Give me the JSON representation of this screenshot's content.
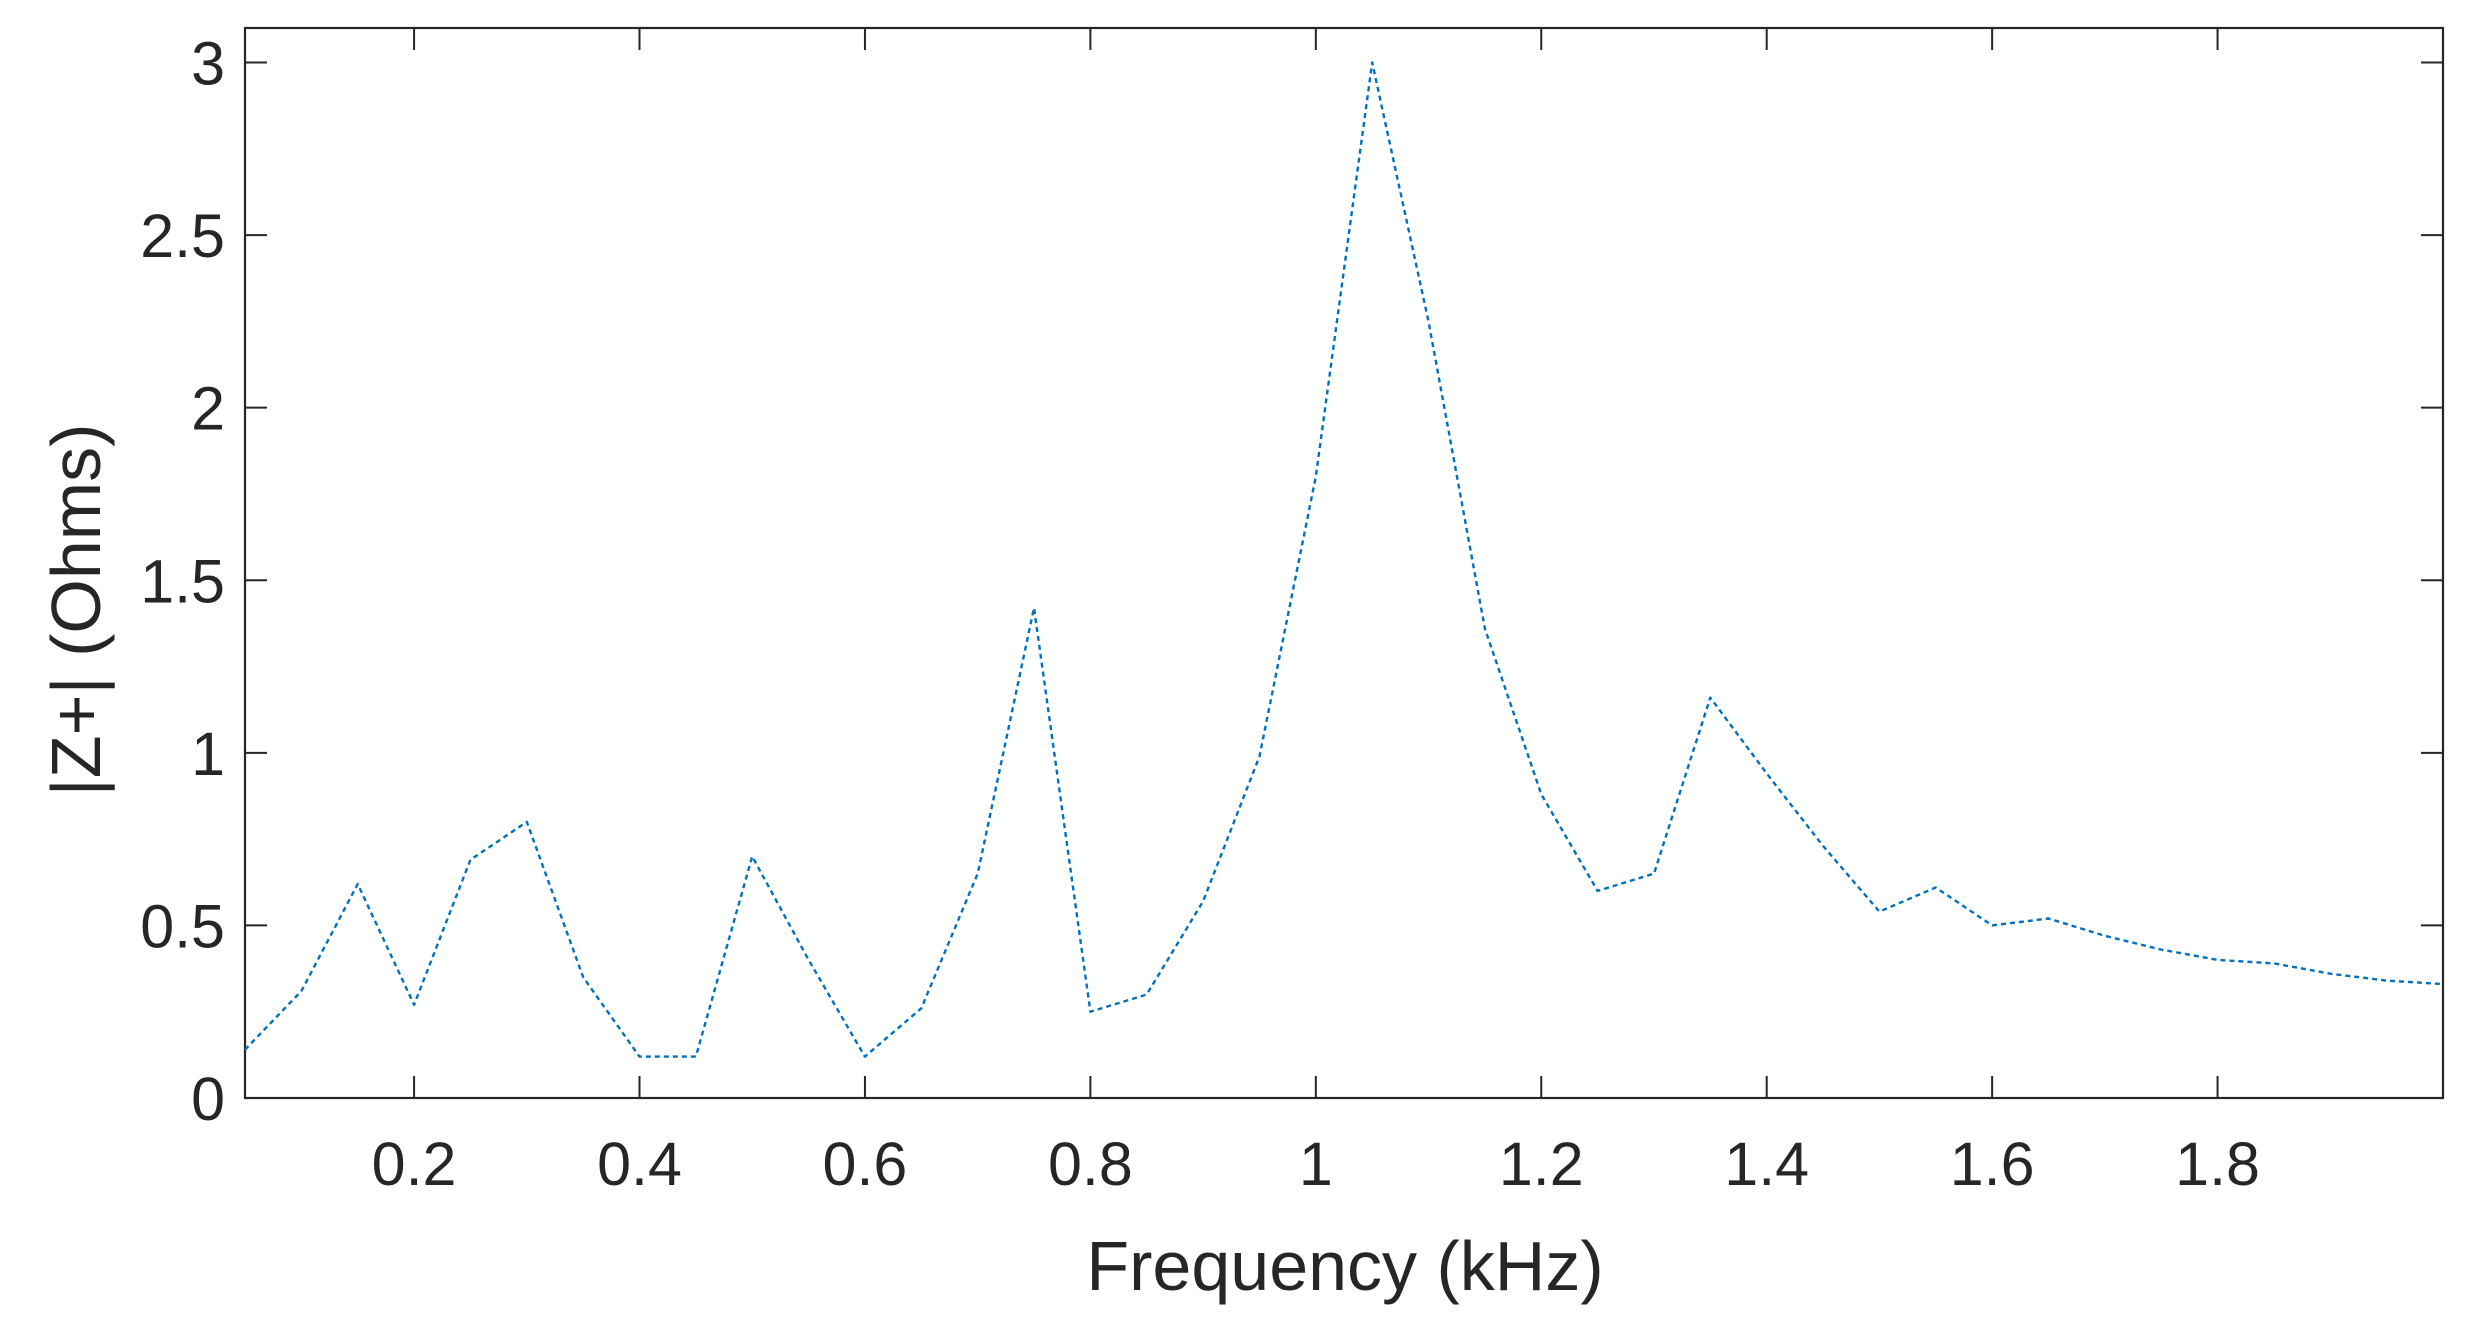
{
  "chart_data": {
    "type": "line",
    "title": "",
    "xlabel": "Frequency (kHz)",
    "ylabel": "|Z+| (Ohms)",
    "xlim": [
      0.05,
      2.0
    ],
    "ylim": [
      0,
      3.1
    ],
    "x_ticks": [
      0.2,
      0.4,
      0.6,
      0.8,
      1.0,
      1.2,
      1.4,
      1.6,
      1.8
    ],
    "x_tick_labels": [
      "0.2",
      "0.4",
      "0.6",
      "0.8",
      "1",
      "1.2",
      "1.4",
      "1.6",
      "1.8"
    ],
    "y_ticks": [
      0,
      0.5,
      1.0,
      1.5,
      2.0,
      2.5,
      3.0
    ],
    "y_tick_labels": [
      "0",
      "0.5",
      "1",
      "1.5",
      "2",
      "2.5",
      "3"
    ],
    "grid": false,
    "box": true,
    "line_color": "#0072BD",
    "axis_color": "#262626",
    "series": [
      {
        "x": [
          0.05,
          0.1,
          0.15,
          0.2,
          0.25,
          0.3,
          0.35,
          0.4,
          0.45,
          0.5,
          0.55,
          0.6,
          0.65,
          0.7,
          0.75,
          0.8,
          0.85,
          0.9,
          0.95,
          1.0,
          1.05,
          1.1,
          1.15,
          1.2,
          1.25,
          1.3,
          1.35,
          1.4,
          1.45,
          1.5,
          1.55,
          1.6,
          1.65,
          1.7,
          1.75,
          1.8,
          1.85,
          1.9,
          1.95,
          2.0
        ],
        "y": [
          0.14,
          0.31,
          0.62,
          0.27,
          0.69,
          0.8,
          0.35,
          0.12,
          0.12,
          0.7,
          0.4,
          0.12,
          0.26,
          0.65,
          1.42,
          0.25,
          0.3,
          0.57,
          0.99,
          1.8,
          3.0,
          2.25,
          1.36,
          0.88,
          0.6,
          0.65,
          1.16,
          0.94,
          0.73,
          0.54,
          0.61,
          0.5,
          0.52,
          0.47,
          0.43,
          0.4,
          0.39,
          0.36,
          0.34,
          0.33
        ]
      }
    ]
  }
}
